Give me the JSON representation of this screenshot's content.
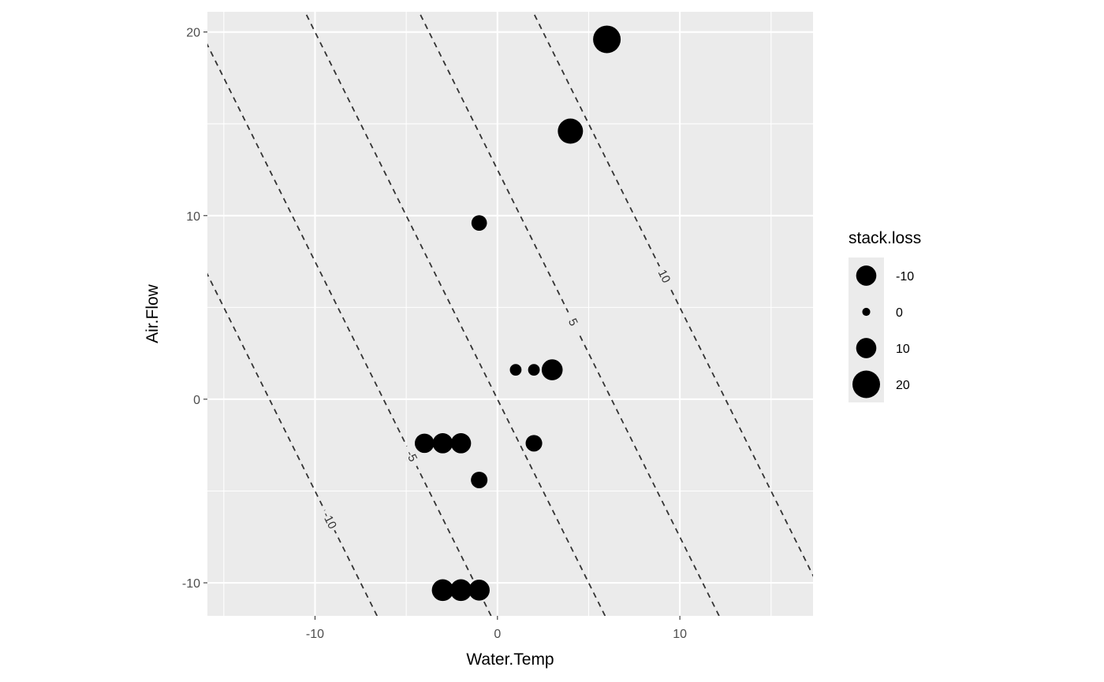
{
  "chart_data": {
    "type": "scatter",
    "xlabel": "Water.Temp",
    "ylabel": "Air.Flow",
    "xlim": [
      -15.9,
      17.3
    ],
    "ylim": [
      -11.8,
      21.1
    ],
    "x_ticks": [
      -10,
      0,
      10
    ],
    "y_ticks": [
      -10,
      0,
      10,
      20
    ],
    "x_tick_labels": [
      "-10",
      "0",
      "10"
    ],
    "y_tick_labels": [
      "-10",
      "0",
      "10",
      "20"
    ],
    "grid": true,
    "background": "#ebebeb",
    "points": [
      {
        "x": 6,
        "y": 19.6,
        "size_value": 22
      },
      {
        "x": 4,
        "y": 14.6,
        "size_value": 18
      },
      {
        "x": -1,
        "y": 9.6,
        "size_value": 6
      },
      {
        "x": 3,
        "y": 1.6,
        "size_value": 12
      },
      {
        "x": 1,
        "y": 1.6,
        "size_value": 3
      },
      {
        "x": 2,
        "y": 1.6,
        "size_value": 3
      },
      {
        "x": 2,
        "y": -2.4,
        "size_value": 7
      },
      {
        "x": -4,
        "y": -2.4,
        "size_value": 10
      },
      {
        "x": -3,
        "y": -2.4,
        "size_value": 11
      },
      {
        "x": -2,
        "y": -2.4,
        "size_value": 11
      },
      {
        "x": -1,
        "y": -4.4,
        "size_value": 7
      },
      {
        "x": -3,
        "y": -10.4,
        "size_value": 13
      },
      {
        "x": -2,
        "y": -10.4,
        "size_value": 13
      },
      {
        "x": -1,
        "y": -10.4,
        "size_value": 12
      }
    ],
    "contours": [
      {
        "level": -10,
        "label": "-10"
      },
      {
        "level": -5,
        "label": "-5"
      },
      {
        "level": 0,
        "label": ""
      },
      {
        "level": 5,
        "label": "5"
      },
      {
        "level": 10,
        "label": "10"
      }
    ],
    "contour_model": {
      "slope_water": 0.8,
      "slope_air": 0.4,
      "level_step": 5
    },
    "legend": {
      "title": "stack.loss",
      "position": "right",
      "items": [
        {
          "label": "-10",
          "size_value": 10
        },
        {
          "label": "0",
          "size_value": 1
        },
        {
          "label": "10",
          "size_value": 10
        },
        {
          "label": "20",
          "size_value": 20
        }
      ]
    }
  }
}
